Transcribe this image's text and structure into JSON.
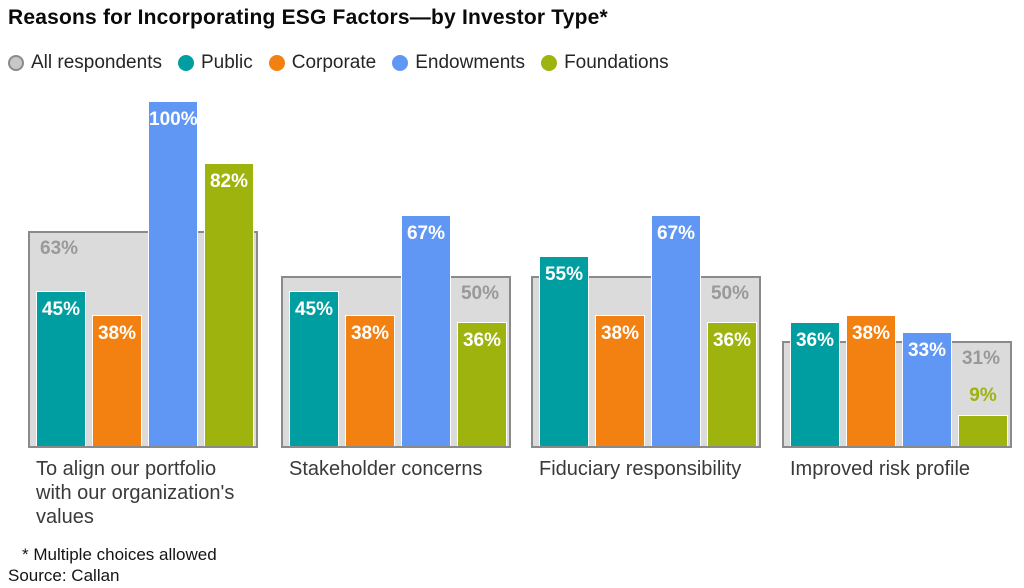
{
  "title": "Reasons for Incorporating ESG Factors—by Investor Type*",
  "legend": [
    {
      "label": "All respondents",
      "color": "#c7c7c7",
      "border": "#8a8a8a"
    },
    {
      "label": "Public",
      "color": "#009ea0"
    },
    {
      "label": "Corporate",
      "color": "#f28111"
    },
    {
      "label": "Endowments",
      "color": "#6197f4"
    },
    {
      "label": "Foundations",
      "color": "#9eb30d"
    }
  ],
  "chart_data": {
    "type": "bar",
    "title": "Reasons for Incorporating ESG Factors—by Investor Type*",
    "unit": "%",
    "ylim": [
      0,
      100
    ],
    "grid": false,
    "legend_position": "top",
    "categories": [
      "To align our portfolio with our organization's values",
      "Stakeholder concerns",
      "Fiduciary responsibility",
      "Improved risk profile"
    ],
    "categories_display": [
      "To align our portfolio\nwith our organization's\nvalues",
      "Stakeholder concerns",
      "Fiduciary responsibility",
      "Improved risk profile"
    ],
    "all_respondents": {
      "name": "All respondents",
      "values": [
        63,
        50,
        50,
        31
      ],
      "label_align": [
        "left",
        "right",
        "right",
        "right"
      ],
      "style": "background-band"
    },
    "series": [
      {
        "name": "Public",
        "values": [
          45,
          45,
          55,
          36
        ]
      },
      {
        "name": "Corporate",
        "values": [
          38,
          38,
          38,
          38
        ]
      },
      {
        "name": "Endowments",
        "values": [
          100,
          67,
          67,
          33
        ]
      },
      {
        "name": "Foundations",
        "values": [
          82,
          36,
          36,
          9
        ]
      }
    ]
  },
  "footnote": "* Multiple choices allowed",
  "source": "Source: Callan",
  "colors": {
    "band_fill": "#dbdbdb",
    "band_border": "#8a8a8a",
    "band_label": "#999999",
    "bar_value_label": "#ffffff"
  }
}
